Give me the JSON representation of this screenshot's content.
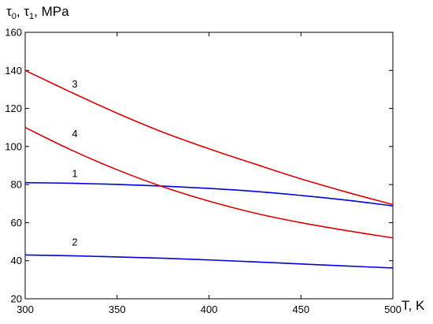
{
  "chart_data": {
    "type": "line",
    "title": "",
    "xlabel": "T, K",
    "ylabel_parts": {
      "tau": "τ",
      "sub0": "0",
      "sep": ", ",
      "sub1": "1",
      "unit": ", MPa"
    },
    "xlim": [
      300,
      500
    ],
    "ylim": [
      20,
      160
    ],
    "x_ticks": [
      300,
      350,
      400,
      450,
      500
    ],
    "y_ticks": [
      20,
      40,
      60,
      80,
      100,
      120,
      140,
      160
    ],
    "grid": false,
    "legend": "none",
    "series": [
      {
        "label": "1",
        "color": "#0000dd",
        "label_at": {
          "x": 327,
          "y": 84
        },
        "points": [
          [
            300,
            81
          ],
          [
            325,
            80.7
          ],
          [
            350,
            80.1
          ],
          [
            375,
            79.2
          ],
          [
            400,
            78
          ],
          [
            425,
            76.4
          ],
          [
            450,
            74.3
          ],
          [
            475,
            71.8
          ],
          [
            500,
            68.8
          ]
        ]
      },
      {
        "label": "2",
        "color": "#0000dd",
        "label_at": {
          "x": 327,
          "y": 48
        },
        "points": [
          [
            300,
            43
          ],
          [
            325,
            42.6
          ],
          [
            350,
            42
          ],
          [
            375,
            41.3
          ],
          [
            400,
            40.4
          ],
          [
            425,
            39.4
          ],
          [
            450,
            38.3
          ],
          [
            475,
            37.2
          ],
          [
            500,
            36.2
          ]
        ]
      },
      {
        "label": "3",
        "color": "#dd0000",
        "label_at": {
          "x": 327,
          "y": 131
        },
        "points": [
          [
            300,
            140
          ],
          [
            325,
            128.5
          ],
          [
            350,
            117.5
          ],
          [
            375,
            107.5
          ],
          [
            400,
            98.8
          ],
          [
            425,
            90.8
          ],
          [
            450,
            83
          ],
          [
            475,
            76
          ],
          [
            500,
            69.5
          ]
        ]
      },
      {
        "label": "4",
        "color": "#dd0000",
        "label_at": {
          "x": 327,
          "y": 105
        },
        "points": [
          [
            300,
            110
          ],
          [
            325,
            98.2
          ],
          [
            350,
            87.8
          ],
          [
            375,
            78.8
          ],
          [
            400,
            71.3
          ],
          [
            425,
            65
          ],
          [
            450,
            60
          ],
          [
            475,
            55.8
          ],
          [
            500,
            52
          ]
        ]
      }
    ]
  }
}
